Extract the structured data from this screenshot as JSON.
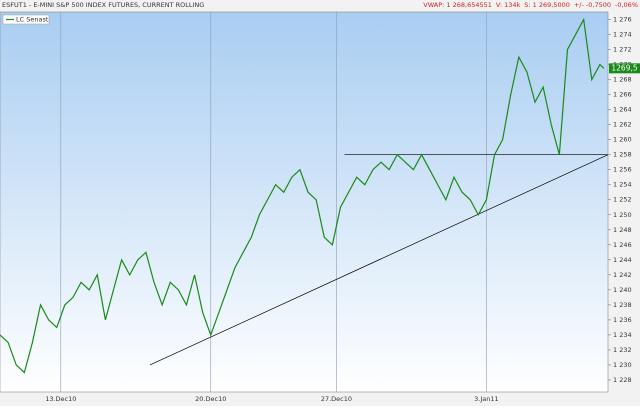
{
  "chart_data": {
    "type": "line",
    "title": "ESFUT1 - E-MINI S&P 500 INDEX FUTURES, CURRENT ROLLING",
    "header_stats": [
      "VWAP: 1 268,654551",
      "V: 134k",
      "S: 1 269,5000",
      "+/- -0,7500",
      "-0,06%"
    ],
    "legend": "LC Senast",
    "xlim": [
      0,
      150
    ],
    "xticks": [
      {
        "value": 15,
        "label": "13.Dec10"
      },
      {
        "value": 52,
        "label": "20.Dec10"
      },
      {
        "value": 83,
        "label": "27.Dec10"
      },
      {
        "value": 120,
        "label": "3.Jan11"
      }
    ],
    "ylim": [
      1226.4,
      1277
    ],
    "yticks": [
      {
        "value": 1228,
        "label": "1 228"
      },
      {
        "value": 1230,
        "label": "1 230"
      },
      {
        "value": 1232,
        "label": "1 232"
      },
      {
        "value": 1234,
        "label": "1 234"
      },
      {
        "value": 1236,
        "label": "1 236"
      },
      {
        "value": 1238,
        "label": "1 238"
      },
      {
        "value": 1240,
        "label": "1 240"
      },
      {
        "value": 1242,
        "label": "1 242"
      },
      {
        "value": 1244,
        "label": "1 244"
      },
      {
        "value": 1246,
        "label": "1 246"
      },
      {
        "value": 1248,
        "label": "1 248"
      },
      {
        "value": 1250,
        "label": "1 250"
      },
      {
        "value": 1252,
        "label": "1 252"
      },
      {
        "value": 1254,
        "label": "1 254"
      },
      {
        "value": 1256,
        "label": "1 256"
      },
      {
        "value": 1258,
        "label": "1 258"
      },
      {
        "value": 1260,
        "label": "1 260"
      },
      {
        "value": 1262,
        "label": "1 262"
      },
      {
        "value": 1264,
        "label": "1 264"
      },
      {
        "value": 1266,
        "label": "1 266"
      },
      {
        "value": 1268,
        "label": "1 268"
      },
      {
        "value": 1270,
        "label": "1 270"
      },
      {
        "value": 1272,
        "label": "1 272"
      },
      {
        "value": 1274,
        "label": "1 274"
      },
      {
        "value": 1276,
        "label": "1 276"
      }
    ],
    "series": [
      {
        "name": "LC Senast",
        "color": "#1a8a1a",
        "x": [
          0,
          2,
          4,
          6,
          8,
          10,
          12,
          14,
          16,
          18,
          20,
          22,
          24,
          26,
          28,
          30,
          32,
          34,
          36,
          38,
          40,
          42,
          44,
          46,
          48,
          50,
          52,
          54,
          56,
          58,
          60,
          62,
          64,
          66,
          68,
          70,
          72,
          74,
          76,
          78,
          80,
          82,
          84,
          86,
          88,
          90,
          92,
          94,
          96,
          98,
          100,
          102,
          104,
          106,
          108,
          110,
          112,
          114,
          116,
          118,
          120,
          122,
          124,
          126,
          128,
          130,
          132,
          134,
          136,
          138,
          140,
          142,
          144,
          146,
          148,
          149
        ],
        "values": [
          1234,
          1233,
          1230,
          1229,
          1233,
          1238,
          1236,
          1235,
          1238,
          1239,
          1241,
          1240,
          1242,
          1236,
          1240,
          1244,
          1242,
          1244,
          1245,
          1241,
          1238,
          1241,
          1240,
          1238,
          1242,
          1237,
          1234,
          1237,
          1240,
          1243,
          1245,
          1247,
          1250,
          1252,
          1254,
          1253,
          1255,
          1256,
          1253,
          1252,
          1247,
          1246,
          1251,
          1253,
          1255,
          1254,
          1256,
          1257,
          1256,
          1258,
          1257,
          1256,
          1258,
          1256,
          1254,
          1252,
          1255,
          1253,
          1252,
          1250,
          1252,
          1258,
          1260,
          1266,
          1271,
          1269,
          1265,
          1267,
          1262,
          1258,
          1272,
          1274,
          1276,
          1268,
          1270,
          1269.5
        ]
      }
    ],
    "last_value": 1269.5,
    "last_value_label": "1269,5",
    "lines": [
      {
        "x": [
          37,
          150
        ],
        "y": [
          1230,
          1258
        ],
        "color": "#000000"
      },
      {
        "x": [
          85,
          150
        ],
        "y": [
          1258,
          1258
        ],
        "color": "#000000"
      }
    ],
    "grid": true
  }
}
